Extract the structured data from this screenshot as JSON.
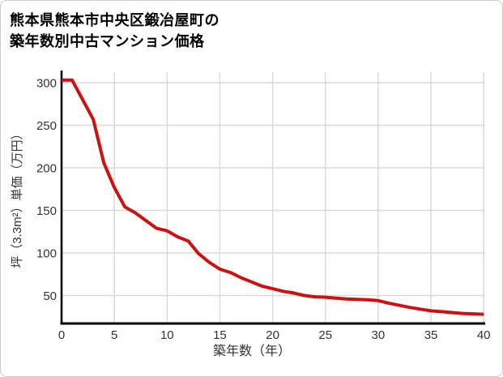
{
  "title_line1": "熊本県熊本市中央区鍛冶屋町の",
  "title_line2": "築年数別中古マンション価格",
  "chart_data": {
    "type": "line",
    "title": "熊本県熊本市中央区鍛冶屋町の築年数別中古マンション価格",
    "title_lines": [
      "熊本県熊本市中央区鍛冶屋町の",
      "築年数別中古マンション価格"
    ],
    "xlabel": "築年数（年）",
    "ylabel": "坪（3.3m²）単価（万円）",
    "x_ticks": [
      0,
      5,
      10,
      15,
      20,
      25,
      30,
      35,
      40
    ],
    "y_ticks": [
      50,
      100,
      150,
      200,
      250,
      300
    ],
    "xlim": [
      0,
      40.2
    ],
    "ylim": [
      16,
      312
    ],
    "grid": true,
    "legend": false,
    "line_color": "#cc1111",
    "grid_color": "#d9d9d9",
    "axis_color": "#000000",
    "tick_label_color": "#333333",
    "series": [
      {
        "name": "坪単価（万円）",
        "x": [
          0,
          1,
          2,
          3,
          4,
          5,
          6,
          7,
          8,
          9,
          10,
          11,
          12,
          13,
          14,
          15,
          16,
          17,
          18,
          19,
          20,
          21,
          22,
          23,
          24,
          25,
          26,
          27,
          28,
          29,
          30,
          31,
          32,
          33,
          34,
          35,
          36,
          37,
          38,
          39,
          40
        ],
        "y": [
          303,
          303,
          280,
          257,
          206,
          177,
          154,
          147,
          138,
          129,
          126,
          119,
          114,
          99,
          89,
          81,
          77,
          71,
          66,
          61,
          58,
          55,
          53,
          50,
          48.5,
          48,
          47,
          46,
          45.5,
          45,
          44,
          41,
          38.5,
          36,
          34,
          32,
          31,
          30,
          29,
          28.5,
          28
        ]
      }
    ]
  }
}
